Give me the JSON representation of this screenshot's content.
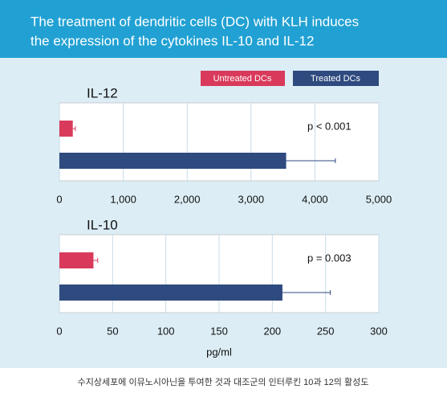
{
  "header": {
    "title": [
      "The treatment of dendritic cells (DC) with KLH induces",
      "the expression of the cytokines IL-10 and IL-12"
    ]
  },
  "caption": "수지상세포에 이뮤노시아닌을 투여한 것과 대조군의 인터루킨 10과 12의 활성도",
  "chart_data": [
    {
      "type": "bar",
      "orientation": "horizontal",
      "title": "IL-12",
      "annotation": "p < 0.001",
      "series": [
        {
          "name": "Untreated DCs",
          "color": "#d93a5b",
          "values": [
            210
          ],
          "errors": [
            40
          ]
        },
        {
          "name": "Treated DCs",
          "color": "#2e4a7f",
          "values": [
            3550
          ],
          "errors": [
            770
          ]
        }
      ],
      "xlim": [
        0,
        5000
      ],
      "xticks": [
        0,
        {
          "value": 1000,
          "label": "1,000"
        },
        {
          "value": 2000,
          "label": "2,000"
        },
        {
          "value": 3000,
          "label": "3,000"
        },
        {
          "value": 4000,
          "label": "4,000"
        },
        {
          "value": 5000,
          "label": "5,000"
        }
      ],
      "grid": true
    },
    {
      "type": "bar",
      "orientation": "horizontal",
      "title": "IL-10",
      "annotation": "p = 0.003",
      "xlabel": "pg/ml",
      "series": [
        {
          "color": "#d93a5b",
          "values": [
            32
          ],
          "errors": [
            4
          ]
        },
        {
          "color": "#2e4a7f",
          "values": [
            209.5
          ],
          "errors": [
            45
          ]
        }
      ],
      "xlim": [
        0,
        300
      ],
      "xticks": [
        0,
        50,
        100,
        150,
        200,
        250,
        300
      ],
      "grid": true
    }
  ]
}
